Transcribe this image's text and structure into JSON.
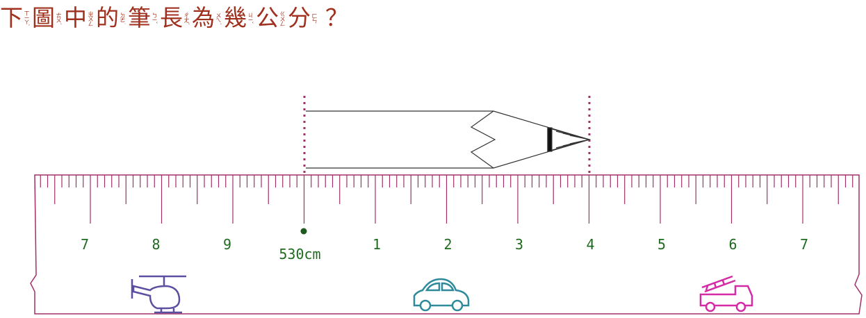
{
  "question": {
    "characters": [
      "下",
      "圖",
      "中",
      "的",
      "筆",
      "長",
      "為",
      "幾",
      "公",
      "分"
    ],
    "zhuyin": [
      "ㄒㄧㄚˋ",
      "ㄊㄨˊ",
      "ㄓㄨㄥ",
      "ㄉㄜ˙",
      "ㄅㄧˇ",
      "ㄔㄤˊ",
      "ㄨㄟˊ",
      "ㄐㄧˇ",
      "ㄍㄨㄥ",
      "ㄈㄣ"
    ],
    "mark": "？"
  },
  "ruler": {
    "labels": [
      "7",
      "8",
      "9",
      "530cm",
      "1",
      "2",
      "3",
      "4",
      "5",
      "6",
      "7"
    ]
  }
}
